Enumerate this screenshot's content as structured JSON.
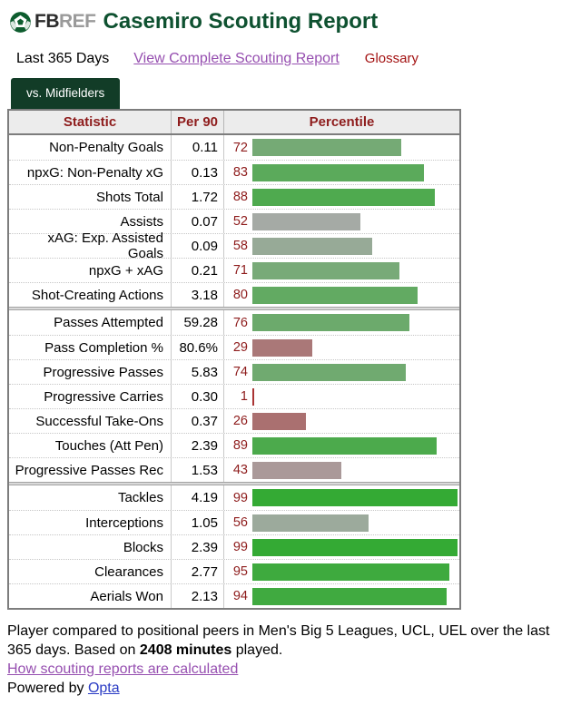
{
  "colors": {
    "brand_green": "#0e5130",
    "tab_green": "#123c27",
    "table_header_red": "#8e1c1c",
    "percentile_number_red": "#8e1c1c",
    "glossary_red": "#a31212",
    "link_purple": "#964fb0",
    "link_blue": "#2b3cc4"
  },
  "header": {
    "logo_fb": "FB",
    "logo_ref": "REF",
    "title": "Casemiro Scouting Report"
  },
  "subheader": {
    "period": "Last 365 Days",
    "complete_report_link": "View Complete Scouting Report",
    "glossary": "Glossary"
  },
  "tab": {
    "label": "vs. Midfielders"
  },
  "table": {
    "columns": [
      "Statistic",
      "Per 90",
      "Percentile"
    ],
    "percentile_max": 100,
    "groups": [
      {
        "name": "attacking",
        "rows": [
          {
            "stat": "Non-Penalty Goals",
            "per90": "0.11",
            "percentile": 72,
            "color": "#75aa75"
          },
          {
            "stat": "npxG: Non-Penalty xG",
            "per90": "0.13",
            "percentile": 83,
            "color": "#5baa5b"
          },
          {
            "stat": "Shots Total",
            "per90": "1.72",
            "percentile": 88,
            "color": "#4faa4f"
          },
          {
            "stat": "Assists",
            "per90": "0.07",
            "percentile": 52,
            "color": "#a5aaa5"
          },
          {
            "stat": "xAG: Exp. Assisted Goals",
            "per90": "0.09",
            "percentile": 58,
            "color": "#97aa97"
          },
          {
            "stat": "npxG + xAG",
            "per90": "0.21",
            "percentile": 71,
            "color": "#78aa78"
          },
          {
            "stat": "Shot-Creating Actions",
            "per90": "3.18",
            "percentile": 80,
            "color": "#62aa62"
          }
        ]
      },
      {
        "name": "possession",
        "rows": [
          {
            "stat": "Passes Attempted",
            "per90": "59.28",
            "percentile": 76,
            "color": "#6caa6c"
          },
          {
            "stat": "Pass Completion %",
            "per90": "80.6%",
            "percentile": 29,
            "color": "#aa7878"
          },
          {
            "stat": "Progressive Passes",
            "per90": "5.83",
            "percentile": 74,
            "color": "#70aa70"
          },
          {
            "stat": "Progressive Carries",
            "per90": "0.30",
            "percentile": 1,
            "color": "#aa3434"
          },
          {
            "stat": "Successful Take-Ons",
            "per90": "0.37",
            "percentile": 26,
            "color": "#aa7070"
          },
          {
            "stat": "Touches (Att Pen)",
            "per90": "2.39",
            "percentile": 89,
            "color": "#4caa4c"
          },
          {
            "stat": "Progressive Passes Rec",
            "per90": "1.53",
            "percentile": 43,
            "color": "#aa9999"
          }
        ]
      },
      {
        "name": "defending",
        "rows": [
          {
            "stat": "Tackles",
            "per90": "4.19",
            "percentile": 99,
            "color": "#34aa34"
          },
          {
            "stat": "Interceptions",
            "per90": "1.05",
            "percentile": 56,
            "color": "#9caa9c"
          },
          {
            "stat": "Blocks",
            "per90": "2.39",
            "percentile": 99,
            "color": "#34aa34"
          },
          {
            "stat": "Clearances",
            "per90": "2.77",
            "percentile": 95,
            "color": "#3eaa3e"
          },
          {
            "stat": "Aerials Won",
            "per90": "2.13",
            "percentile": 94,
            "color": "#40aa40"
          }
        ]
      }
    ]
  },
  "footer": {
    "note_before": "Player compared to positional peers in Men's Big 5 Leagues, UCL, UEL over the last 365 days. Based on ",
    "minutes_bold": "2408 minutes",
    "note_after": " played.",
    "calc_link": "How scouting reports are calculated",
    "powered_by": "Powered by ",
    "opta_link": "Opta"
  }
}
